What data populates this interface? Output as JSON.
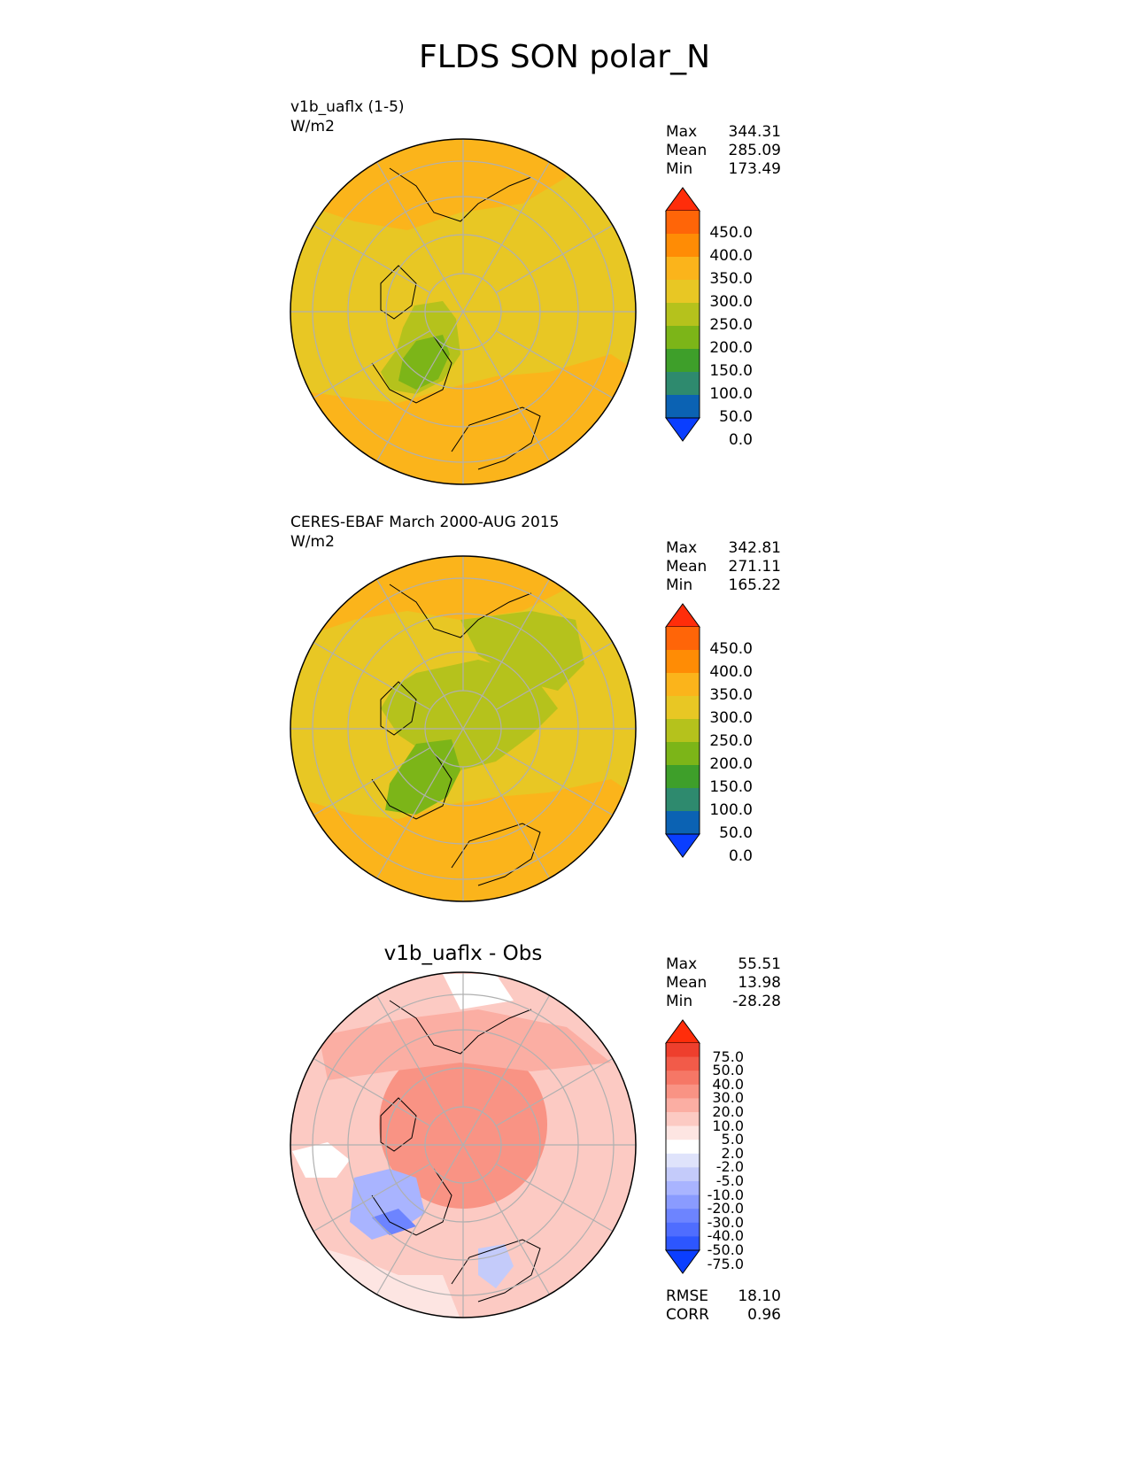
{
  "title": "FLDS SON polar_N",
  "colors": {
    "abs_levels": [
      "#0a3eff",
      "#0b62b3",
      "#2e8a6e",
      "#3e9f2a",
      "#7cb518",
      "#b5c21c",
      "#e8c724",
      "#fbb41b",
      "#ff8c05",
      "#ff6508",
      "#ff2d0a"
    ],
    "diff_levels": [
      "#0a3eff",
      "#2d56ff",
      "#4f6dff",
      "#6d84ff",
      "#8a9bff",
      "#a9b4ff",
      "#c4cbfa",
      "#dfe3fb",
      "#ffffff",
      "#fde5e2",
      "#fccac3",
      "#fbaea3",
      "#f99384",
      "#f67766",
      "#f25b49",
      "#ee3f2d",
      "#ff2d0a"
    ],
    "land_edge": "#000000",
    "grid": "#b0b0b0"
  },
  "panels": [
    {
      "title": "v1b_uaflx (1-5)",
      "units": "W/m2",
      "stats": [
        {
          "label": "Max",
          "value": "344.31"
        },
        {
          "label": "Mean",
          "value": "285.09"
        },
        {
          "label": "Min",
          "value": "173.49"
        }
      ],
      "colorbar": {
        "ticks": [
          "450.0",
          "400.0",
          "350.0",
          "300.0",
          "250.0",
          "200.0",
          "150.0",
          "100.0",
          "50.0",
          "0.0"
        ]
      }
    },
    {
      "title": "CERES-EBAF March 2000-AUG 2015",
      "units": "W/m2",
      "stats": [
        {
          "label": "Max",
          "value": "342.81"
        },
        {
          "label": "Mean",
          "value": "271.11"
        },
        {
          "label": "Min",
          "value": "165.22"
        }
      ],
      "colorbar": {
        "ticks": [
          "450.0",
          "400.0",
          "350.0",
          "300.0",
          "250.0",
          "200.0",
          "150.0",
          "100.0",
          "50.0",
          "0.0"
        ]
      }
    },
    {
      "title": "v1b_uaflx - Obs",
      "stats": [
        {
          "label": "Max",
          "value": "55.51"
        },
        {
          "label": "Mean",
          "value": "13.98"
        },
        {
          "label": "Min",
          "value": "-28.28"
        }
      ],
      "colorbar": {
        "ticks": [
          "75.0",
          "50.0",
          "40.0",
          "30.0",
          "20.0",
          "10.0",
          "5.0",
          "2.0",
          "-2.0",
          "-5.0",
          "-10.0",
          "-20.0",
          "-30.0",
          "-40.0",
          "-50.0",
          "-75.0"
        ]
      },
      "metrics": [
        {
          "label": "RMSE",
          "value": "18.10"
        },
        {
          "label": "CORR",
          "value": "0.96"
        }
      ]
    }
  ]
}
